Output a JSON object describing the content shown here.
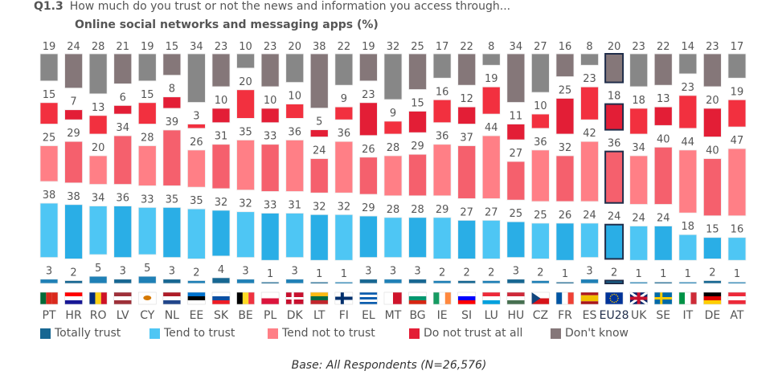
{
  "header": {
    "qnum": "Q1.3",
    "question": "How much do you trust or not the news and information you access through...",
    "subtitle": "Online social networks and messaging apps  (%)"
  },
  "base": "Base: All Respondents (N=26,576)",
  "chart_data": {
    "type": "bar",
    "layout": "floating stacked columns per country",
    "categories": [
      "PT",
      "HR",
      "RO",
      "LV",
      "CY",
      "NL",
      "EE",
      "SK",
      "BE",
      "PL",
      "DK",
      "LT",
      "FI",
      "EL",
      "MT",
      "BG",
      "IE",
      "SI",
      "LU",
      "HU",
      "CZ",
      "FR",
      "ES",
      "EU28",
      "UK",
      "SE",
      "IT",
      "DE",
      "AT"
    ],
    "highlight": "EU28",
    "series": [
      {
        "name": "Don't know",
        "colors": [
          "#878787",
          "#857779"
        ],
        "values": [
          19,
          24,
          28,
          21,
          19,
          15,
          34,
          23,
          10,
          23,
          20,
          38,
          22,
          19,
          32,
          25,
          17,
          22,
          8,
          34,
          27,
          16,
          8,
          20,
          23,
          22,
          14,
          23,
          17
        ]
      },
      {
        "name": "Do not trust at all",
        "colors": [
          "#f2303f",
          "#e31e36"
        ],
        "values": [
          15,
          7,
          13,
          6,
          15,
          8,
          3,
          10,
          20,
          10,
          10,
          5,
          9,
          23,
          9,
          15,
          16,
          12,
          19,
          11,
          10,
          25,
          23,
          18,
          18,
          13,
          23,
          20,
          19
        ]
      },
      {
        "name": "Tend not to trust",
        "colors": [
          "#ff7f86",
          "#f5606d"
        ],
        "values": [
          25,
          29,
          20,
          34,
          28,
          39,
          26,
          31,
          35,
          33,
          36,
          24,
          36,
          26,
          28,
          29,
          36,
          37,
          44,
          27,
          36,
          32,
          42,
          36,
          34,
          40,
          44,
          40,
          47
        ]
      },
      {
        "name": "Tend to trust",
        "colors": [
          "#4ec6f4",
          "#2aaee6"
        ],
        "values": [
          38,
          38,
          34,
          36,
          33,
          35,
          35,
          32,
          32,
          33,
          31,
          32,
          32,
          29,
          28,
          28,
          29,
          27,
          27,
          25,
          25,
          26,
          24,
          24,
          24,
          24,
          18,
          15,
          16
        ]
      },
      {
        "name": "Totally trust",
        "colors": [
          "#1f80b6",
          "#176792"
        ],
        "values": [
          3,
          2,
          5,
          3,
          5,
          3,
          2,
          4,
          3,
          1,
          3,
          1,
          1,
          3,
          3,
          3,
          2,
          2,
          2,
          3,
          2,
          1,
          3,
          2,
          1,
          1,
          1,
          2,
          1
        ]
      }
    ],
    "legend": [
      "Totally trust",
      "Tend to trust",
      "Tend not to trust",
      "Do not trust at all",
      "Don't know"
    ],
    "legend_colors": [
      "#176792",
      "#4ec6f4",
      "#ff7f86",
      "#e31e36",
      "#857779"
    ],
    "legend_placement": "bottom"
  },
  "flags": {
    "PT": [
      "v",
      [
        "#046a38",
        "#da291c",
        "#da291c"
      ]
    ],
    "HR": [
      "h",
      [
        "#ff0000",
        "#ffffff",
        "#171796"
      ]
    ],
    "RO": [
      "v",
      [
        "#002b7f",
        "#fcd116",
        "#ce1126"
      ]
    ],
    "LV": [
      "h",
      [
        "#9e3039",
        "#ffffff",
        "#9e3039"
      ]
    ],
    "CY": [
      "h",
      [
        "#ffffff",
        "#ffffff",
        "#ffffff"
      ]
    ],
    "NL": [
      "h",
      [
        "#ae1c28",
        "#ffffff",
        "#21468b"
      ]
    ],
    "EE": [
      "h",
      [
        "#0072ce",
        "#000000",
        "#ffffff"
      ]
    ],
    "SK": [
      "h",
      [
        "#ffffff",
        "#0b4ea2",
        "#ee1c25"
      ]
    ],
    "BE": [
      "v",
      [
        "#000000",
        "#fdda24",
        "#ef3340"
      ]
    ],
    "PL": [
      "h",
      [
        "#ffffff",
        "#dc143c"
      ]
    ],
    "DK": [
      "h",
      [
        "#c8102e",
        "#c8102e"
      ]
    ],
    "LT": [
      "h",
      [
        "#fdb913",
        "#006a44",
        "#c1272d"
      ]
    ],
    "FI": [
      "h",
      [
        "#ffffff",
        "#ffffff"
      ]
    ],
    "EL": [
      "h",
      [
        "#0d5eaf",
        "#ffffff",
        "#0d5eaf",
        "#ffffff",
        "#0d5eaf"
      ]
    ],
    "MT": [
      "v",
      [
        "#ffffff",
        "#cf142b"
      ]
    ],
    "BG": [
      "h",
      [
        "#ffffff",
        "#00966e",
        "#d62612"
      ]
    ],
    "IE": [
      "v",
      [
        "#169b62",
        "#ffffff",
        "#ff883e"
      ]
    ],
    "SI": [
      "h",
      [
        "#ffffff",
        "#0000ff",
        "#ff0000"
      ]
    ],
    "LU": [
      "h",
      [
        "#ed2939",
        "#ffffff",
        "#00a1de"
      ]
    ],
    "HU": [
      "h",
      [
        "#ce2939",
        "#ffffff",
        "#477050"
      ]
    ],
    "CZ": [
      "h",
      [
        "#ffffff",
        "#d7141a"
      ]
    ],
    "FR": [
      "v",
      [
        "#0055a4",
        "#ffffff",
        "#ef4135"
      ]
    ],
    "ES": [
      "h",
      [
        "#aa151b",
        "#f1bf00",
        "#f1bf00",
        "#aa151b"
      ]
    ],
    "EU28": [
      "h",
      [
        "#003399"
      ]
    ],
    "UK": [
      "h",
      [
        "#012169"
      ]
    ],
    "SE": [
      "h",
      [
        "#006aa7",
        "#006aa7"
      ]
    ],
    "IT": [
      "v",
      [
        "#009246",
        "#ffffff",
        "#ce2b37"
      ]
    ],
    "DE": [
      "h",
      [
        "#000000",
        "#dd0000",
        "#ffce00"
      ]
    ],
    "AT": [
      "h",
      [
        "#ed2939",
        "#ffffff",
        "#ed2939"
      ]
    ]
  }
}
